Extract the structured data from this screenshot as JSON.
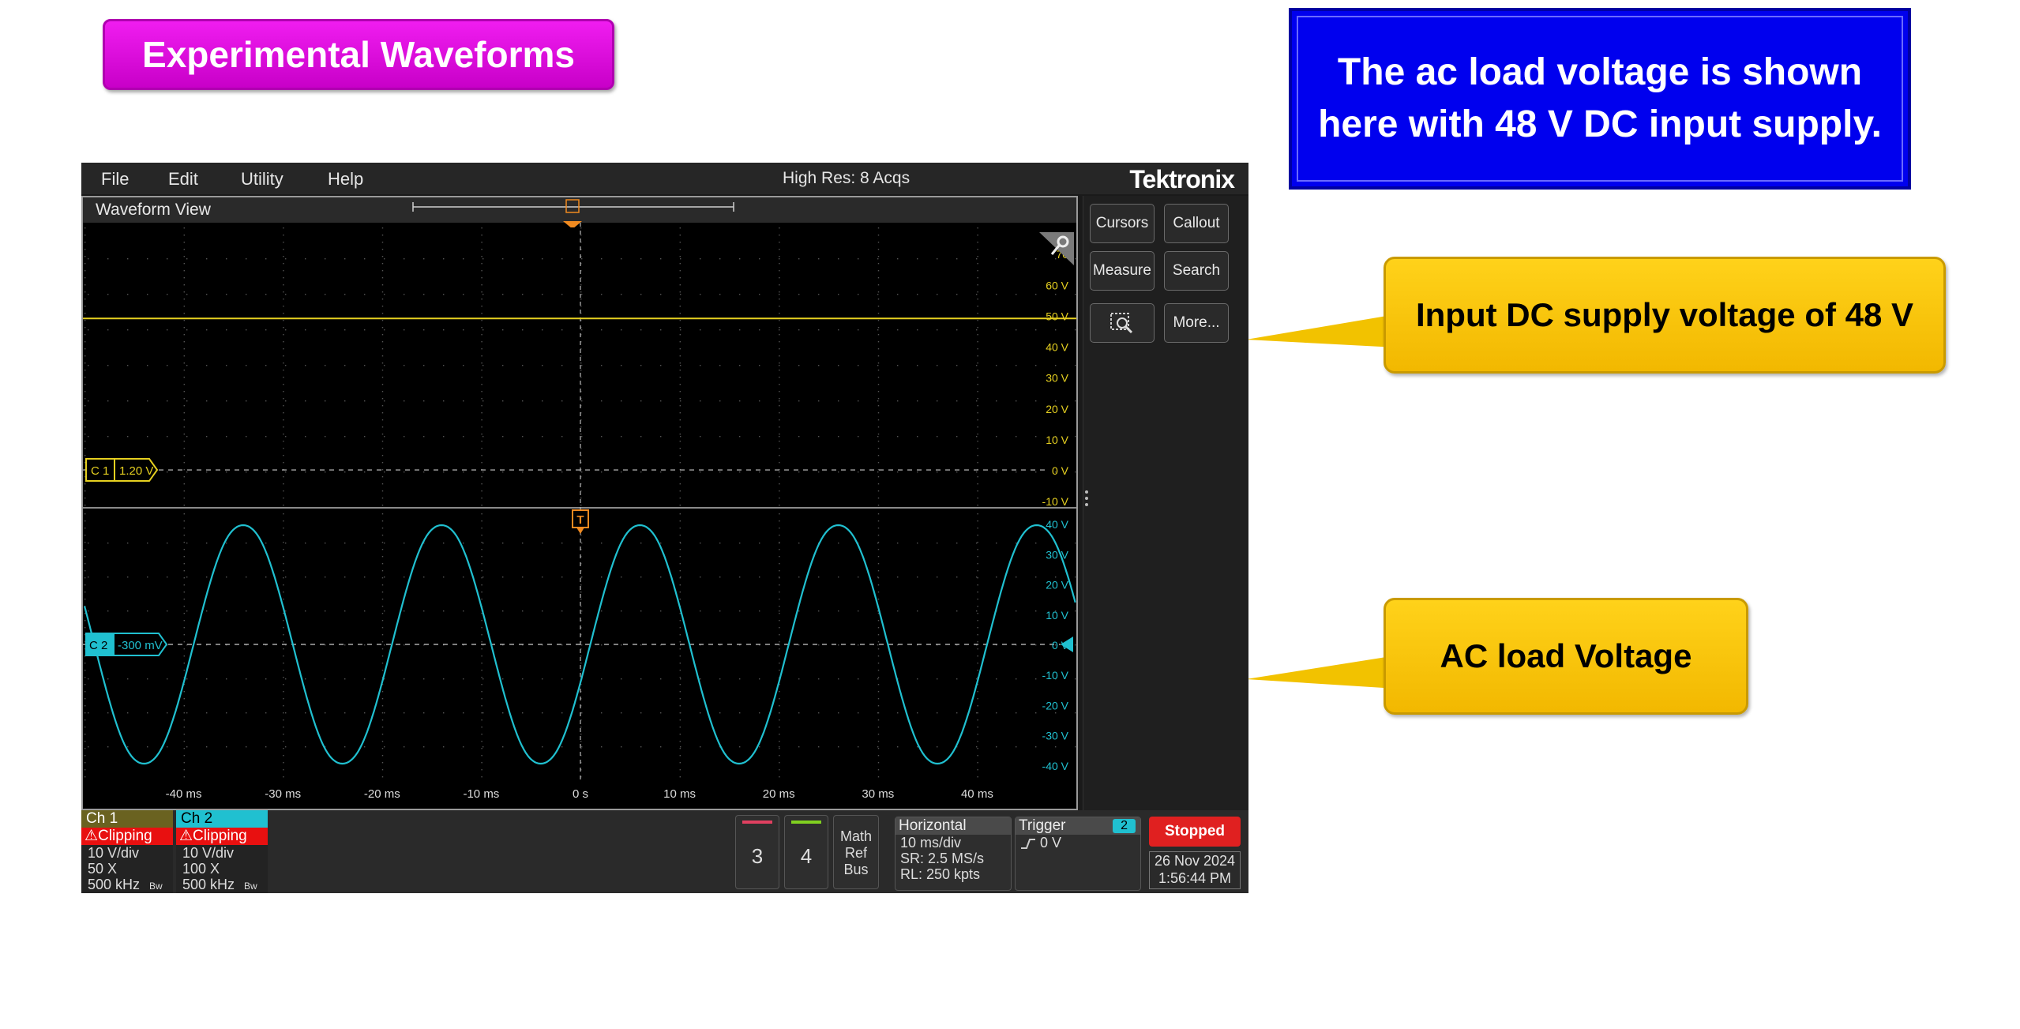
{
  "slide": {
    "title": "Experimental Waveforms",
    "info_text": "The ac load voltage is shown here with 48 V DC input supply.",
    "callout_dc": "Input DC supply voltage of 48 V",
    "callout_ac": "AC load Voltage",
    "colors": {
      "title_bg": "#e010e0",
      "info_bg": "#0000ee",
      "callout_bg": "#ffcc00"
    }
  },
  "scope": {
    "menu": [
      "File",
      "Edit",
      "Utility",
      "Help"
    ],
    "acq_mode": "High Res: 8 Acqs",
    "brand": "Tektronix",
    "waveform_view_title": "Waveform View",
    "side_buttons": [
      "Cursors",
      "Callout",
      "Measure",
      "Search",
      "More..."
    ],
    "zoom_icon": "zoom-region-icon",
    "trigger_marker": "T"
  },
  "chart_data": {
    "type": "line",
    "x_tick_labels": [
      "-40 ms",
      "-30 ms",
      "-20 ms",
      "-10 ms",
      "0 s",
      "10 ms",
      "20 ms",
      "30 ms",
      "40 ms"
    ],
    "xlim_ms": [
      -50,
      50
    ],
    "panes": [
      {
        "channel": "C 1",
        "offset_label": "1.20 V",
        "color": "#e6d020",
        "y_tick_labels": [
          "70",
          "60 V",
          "50 V",
          "40 V",
          "30 V",
          "20 V",
          "10 V",
          "0 V",
          "-10 V"
        ],
        "ylim": [
          -12,
          80
        ],
        "series": [
          {
            "kind": "dc",
            "value_V": 49
          }
        ]
      },
      {
        "channel": "C 2",
        "offset_label": "-300 mV",
        "color": "#20c0d0",
        "y_tick_labels": [
          "40 V",
          "30 V",
          "20 V",
          "10 V",
          "0 V",
          "-10 V",
          "-20 V",
          "-30 V",
          "-40 V"
        ],
        "ylim": [
          -45,
          45
        ],
        "series": [
          {
            "kind": "sine",
            "amplitude_V": 41,
            "frequency_Hz": 50,
            "peak_time_ms": -34
          }
        ]
      }
    ]
  },
  "channels": [
    {
      "name": "Ch 1",
      "status": "Clipping",
      "scale": "10 V/div",
      "probe": "50 X",
      "bw": "500 kHz",
      "bw_icon": "Bw",
      "color": "#e6d020"
    },
    {
      "name": "Ch 2",
      "status": "Clipping",
      "scale": "10 V/div",
      "probe": "100 X",
      "bw": "500 kHz",
      "bw_icon": "Bw",
      "color": "#20c0d0"
    }
  ],
  "extra_channels": [
    "3",
    "4"
  ],
  "math_ref_bus": [
    "Math",
    "Ref",
    "Bus"
  ],
  "horizontal": {
    "title": "Horizontal",
    "scale": "10 ms/div",
    "sr": "SR: 2.5 MS/s",
    "rl": "RL: 250 kpts"
  },
  "trigger": {
    "title": "Trigger",
    "source": "2",
    "level": "0 V"
  },
  "run_state": "Stopped",
  "date": "26 Nov 2024",
  "time": "1:56:44 PM"
}
